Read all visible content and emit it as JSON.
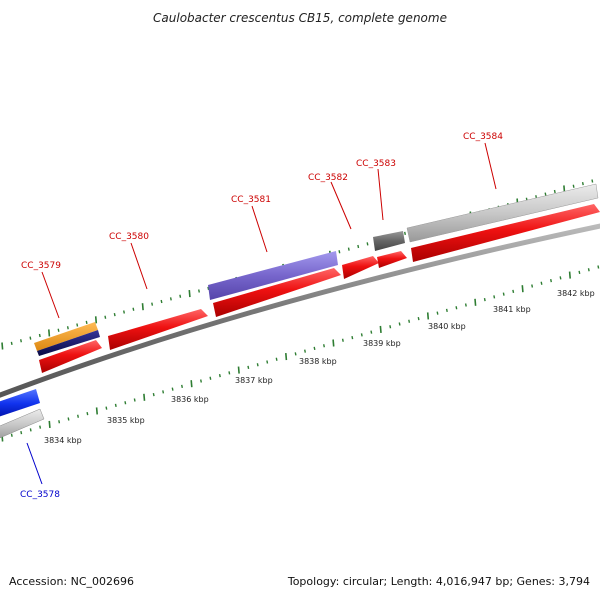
{
  "title": "Caulobacter crescentus CB15, complete genome",
  "footer": {
    "accession": "Accession: NC_002696",
    "summary": "Topology: circular; Length: 4,016,947 bp; Genes: 3,794"
  },
  "colors": {
    "backbone": "#888888",
    "tick": "#2e7d32",
    "forward_label": "#cc0000",
    "reverse_label": "#0000cc",
    "cds": "#ee1111",
    "gene_gray": "#c8c8c8",
    "gene_dark": "#666666",
    "gene_purple": "#7766cc",
    "gene_orange": "#ee9922",
    "gene_navy": "#111166",
    "gene_blue": "#1133ee"
  },
  "ruler": {
    "labels": [
      "3834 kbp",
      "3835 kbp",
      "3836 kbp",
      "3837 kbp",
      "3838 kbp",
      "3839 kbp",
      "3840 kbp",
      "3841 kbp",
      "3842 kbp"
    ]
  },
  "genes": [
    {
      "name": "CC_3578",
      "strand": "reverse"
    },
    {
      "name": "CC_3579",
      "strand": "forward"
    },
    {
      "name": "CC_3580",
      "strand": "forward"
    },
    {
      "name": "CC_3581",
      "strand": "forward"
    },
    {
      "name": "CC_3582",
      "strand": "forward"
    },
    {
      "name": "CC_3583",
      "strand": "forward"
    },
    {
      "name": "CC_3584",
      "strand": "forward"
    }
  ]
}
